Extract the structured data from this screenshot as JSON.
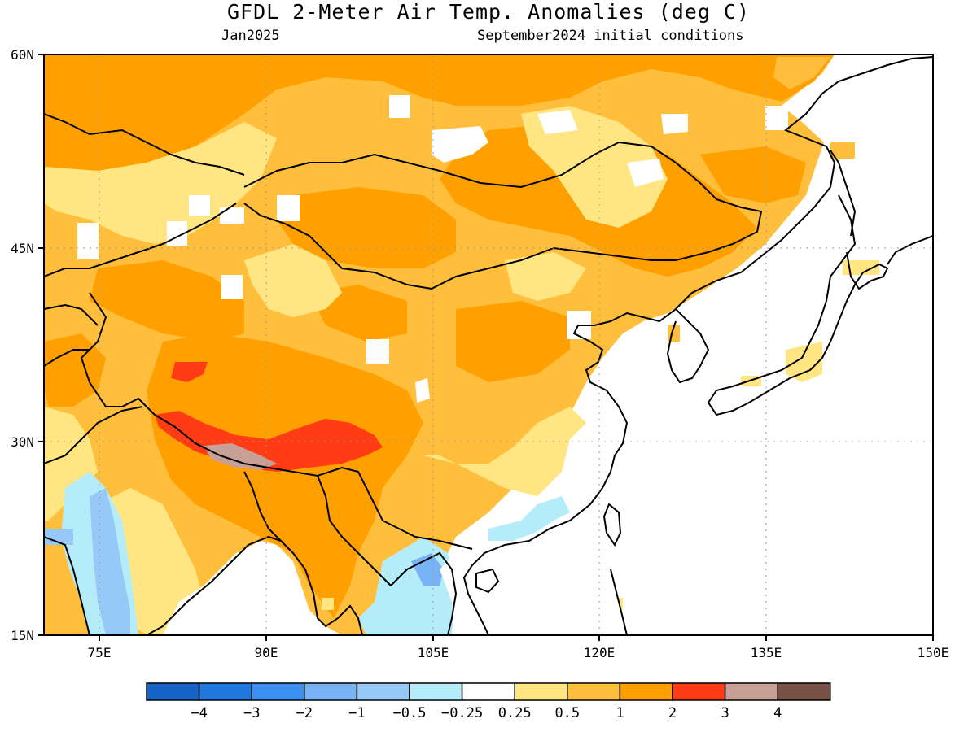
{
  "title": "GFDL 2-Meter Air Temp. Anomalies (deg C)",
  "valid_month": "Jan2025",
  "init_conditions": "September2024 initial conditions",
  "map": {
    "lon_range": [
      70,
      150
    ],
    "lat_range": [
      15,
      60
    ],
    "lon_ticks": [
      "75E",
      "90E",
      "105E",
      "120E",
      "135E",
      "150E"
    ],
    "lat_ticks": [
      "60N",
      "45N",
      "30N",
      "15N"
    ]
  },
  "colorbar": {
    "colors": [
      "#1565c8",
      "#1f78dc",
      "#3b8ff0",
      "#78b4f5",
      "#96c8f8",
      "#b4ecfa",
      "#ffffff",
      "#ffe682",
      "#ffbe3c",
      "#ffa000",
      "#ff3c14",
      "#c8a096",
      "#785046"
    ],
    "labels": [
      "−4",
      "−3",
      "−2",
      "−1",
      "−0.5",
      "−0.25",
      "0.25",
      "0.5",
      "1",
      "2",
      "3",
      "4"
    ]
  }
}
